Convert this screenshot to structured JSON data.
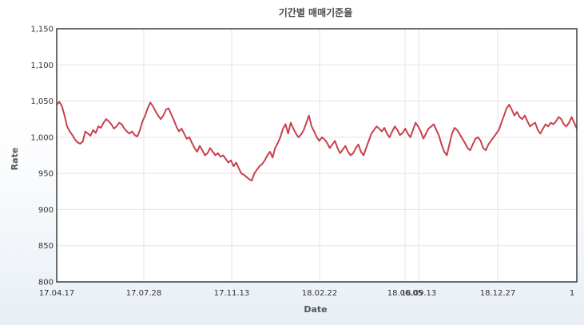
{
  "chart_data": {
    "type": "line",
    "title": "기간별 매매기준율",
    "xlabel": "Date",
    "ylabel": "Rate",
    "ylim": [
      800,
      1150
    ],
    "yticks": [
      "800",
      "850",
      "900",
      "950",
      "1,000",
      "1,050",
      "1,100",
      "1,150"
    ],
    "ytick_values": [
      800,
      850,
      900,
      950,
      1000,
      1050,
      1100,
      1150
    ],
    "xlim": [
      0,
      100
    ],
    "xticks": [
      "17.04.17",
      "17.07.28",
      "17.11.13",
      "18.02.22",
      "18.06.05",
      "18.09.13",
      "18.12.27",
      "1"
    ],
    "xtick_positions": [
      0,
      16.8,
      33.6,
      50.4,
      67.2,
      84.0,
      85.8,
      100
    ],
    "grid": true,
    "legend": "none",
    "line_color": "#c8404e",
    "series": [
      {
        "values": [
          [
            0,
            1045
          ],
          [
            0.5,
            1049
          ],
          [
            1,
            1043
          ],
          [
            1.5,
            1030
          ],
          [
            2,
            1015
          ],
          [
            2.5,
            1008
          ],
          [
            3,
            1003
          ],
          [
            3.5,
            997
          ],
          [
            4,
            993
          ],
          [
            4.5,
            991
          ],
          [
            5,
            994
          ],
          [
            5.5,
            1008
          ],
          [
            6,
            1005
          ],
          [
            6.5,
            1002
          ],
          [
            7,
            1010
          ],
          [
            7.5,
            1006
          ],
          [
            8,
            1015
          ],
          [
            8.5,
            1013
          ],
          [
            9,
            1020
          ],
          [
            9.5,
            1025
          ],
          [
            10,
            1022
          ],
          [
            10.5,
            1018
          ],
          [
            11,
            1012
          ],
          [
            11.5,
            1015
          ],
          [
            12,
            1020
          ],
          [
            12.5,
            1018
          ],
          [
            13,
            1012
          ],
          [
            13.5,
            1008
          ],
          [
            14,
            1005
          ],
          [
            14.5,
            1008
          ],
          [
            15,
            1003
          ],
          [
            15.5,
            1001
          ],
          [
            16,
            1010
          ],
          [
            16.5,
            1022
          ],
          [
            17,
            1030
          ],
          [
            17.5,
            1040
          ],
          [
            18,
            1048
          ],
          [
            18.5,
            1043
          ],
          [
            19,
            1036
          ],
          [
            19.5,
            1030
          ],
          [
            20,
            1025
          ],
          [
            20.5,
            1030
          ],
          [
            21,
            1038
          ],
          [
            21.5,
            1040
          ],
          [
            22,
            1032
          ],
          [
            22.5,
            1024
          ],
          [
            23,
            1015
          ],
          [
            23.5,
            1008
          ],
          [
            24,
            1012
          ],
          [
            24.5,
            1005
          ],
          [
            25,
            998
          ],
          [
            25.5,
            1000
          ],
          [
            26,
            992
          ],
          [
            26.5,
            985
          ],
          [
            27,
            980
          ],
          [
            27.5,
            988
          ],
          [
            28,
            982
          ],
          [
            28.5,
            975
          ],
          [
            29,
            978
          ],
          [
            29.5,
            985
          ],
          [
            30,
            980
          ],
          [
            30.5,
            975
          ],
          [
            31,
            978
          ],
          [
            31.5,
            973
          ],
          [
            32,
            975
          ],
          [
            32.5,
            970
          ],
          [
            33,
            965
          ],
          [
            33.5,
            968
          ],
          [
            34,
            960
          ],
          [
            34.5,
            965
          ],
          [
            35,
            957
          ],
          [
            35.5,
            950
          ],
          [
            36,
            948
          ],
          [
            36.5,
            945
          ],
          [
            37,
            942
          ],
          [
            37.5,
            940
          ],
          [
            38,
            950
          ],
          [
            38.5,
            955
          ],
          [
            39,
            960
          ],
          [
            39.5,
            963
          ],
          [
            40,
            968
          ],
          [
            40.5,
            975
          ],
          [
            41,
            980
          ],
          [
            41.5,
            972
          ],
          [
            42,
            985
          ],
          [
            42.5,
            992
          ],
          [
            43,
            1000
          ],
          [
            43.5,
            1012
          ],
          [
            44,
            1018
          ],
          [
            44.5,
            1005
          ],
          [
            45,
            1020
          ],
          [
            45.5,
            1012
          ],
          [
            46,
            1005
          ],
          [
            46.5,
            1000
          ],
          [
            47,
            1004
          ],
          [
            47.5,
            1010
          ],
          [
            48,
            1020
          ],
          [
            48.5,
            1030
          ],
          [
            49,
            1015
          ],
          [
            49.5,
            1008
          ],
          [
            50,
            1000
          ],
          [
            50.5,
            995
          ],
          [
            51,
            1000
          ],
          [
            51.5,
            997
          ],
          [
            52,
            992
          ],
          [
            52.5,
            985
          ],
          [
            53,
            990
          ],
          [
            53.5,
            995
          ],
          [
            54,
            985
          ],
          [
            54.5,
            978
          ],
          [
            55,
            983
          ],
          [
            55.5,
            988
          ],
          [
            56,
            980
          ],
          [
            56.5,
            975
          ],
          [
            57,
            978
          ],
          [
            57.5,
            985
          ],
          [
            58,
            990
          ],
          [
            58.5,
            980
          ],
          [
            59,
            975
          ],
          [
            59.5,
            985
          ],
          [
            60,
            995
          ],
          [
            60.5,
            1005
          ],
          [
            61,
            1010
          ],
          [
            61.5,
            1015
          ],
          [
            62,
            1012
          ],
          [
            62.5,
            1008
          ],
          [
            63,
            1013
          ],
          [
            63.5,
            1005
          ],
          [
            64,
            1000
          ],
          [
            64.5,
            1008
          ],
          [
            65,
            1015
          ],
          [
            65.5,
            1010
          ],
          [
            66,
            1003
          ],
          [
            66.5,
            1006
          ],
          [
            67,
            1012
          ],
          [
            67.5,
            1005
          ],
          [
            68,
            1000
          ],
          [
            68.5,
            1010
          ],
          [
            69,
            1020
          ],
          [
            69.5,
            1015
          ],
          [
            70,
            1008
          ],
          [
            70.5,
            998
          ],
          [
            71,
            1005
          ],
          [
            71.5,
            1012
          ],
          [
            72,
            1015
          ],
          [
            72.5,
            1018
          ],
          [
            73,
            1010
          ],
          [
            73.5,
            1002
          ],
          [
            74,
            990
          ],
          [
            74.5,
            980
          ],
          [
            75,
            975
          ],
          [
            75.5,
            990
          ],
          [
            76,
            1005
          ],
          [
            76.5,
            1013
          ],
          [
            77,
            1010
          ],
          [
            77.5,
            1004
          ],
          [
            78,
            998
          ],
          [
            78.5,
            992
          ],
          [
            79,
            985
          ],
          [
            79.5,
            982
          ],
          [
            80,
            990
          ],
          [
            80.5,
            998
          ],
          [
            81,
            1000
          ],
          [
            81.5,
            995
          ],
          [
            82,
            985
          ],
          [
            82.5,
            982
          ],
          [
            83,
            990
          ],
          [
            83.5,
            995
          ],
          [
            84,
            1000
          ],
          [
            84.5,
            1005
          ],
          [
            85,
            1010
          ],
          [
            85.5,
            1020
          ],
          [
            86,
            1030
          ],
          [
            86.5,
            1040
          ],
          [
            87,
            1045
          ],
          [
            87.5,
            1038
          ],
          [
            88,
            1030
          ],
          [
            88.5,
            1035
          ],
          [
            89,
            1028
          ],
          [
            89.5,
            1025
          ],
          [
            90,
            1030
          ],
          [
            90.5,
            1022
          ],
          [
            91,
            1015
          ],
          [
            91.5,
            1018
          ],
          [
            92,
            1020
          ],
          [
            92.5,
            1010
          ],
          [
            93,
            1005
          ],
          [
            93.5,
            1012
          ],
          [
            94,
            1018
          ],
          [
            94.5,
            1015
          ],
          [
            95,
            1020
          ],
          [
            95.5,
            1018
          ],
          [
            96,
            1022
          ],
          [
            96.5,
            1028
          ],
          [
            97,
            1025
          ],
          [
            97.5,
            1018
          ],
          [
            98,
            1015
          ],
          [
            98.5,
            1020
          ],
          [
            99,
            1028
          ],
          [
            99.5,
            1020
          ],
          [
            100,
            1012
          ]
        ]
      }
    ]
  }
}
